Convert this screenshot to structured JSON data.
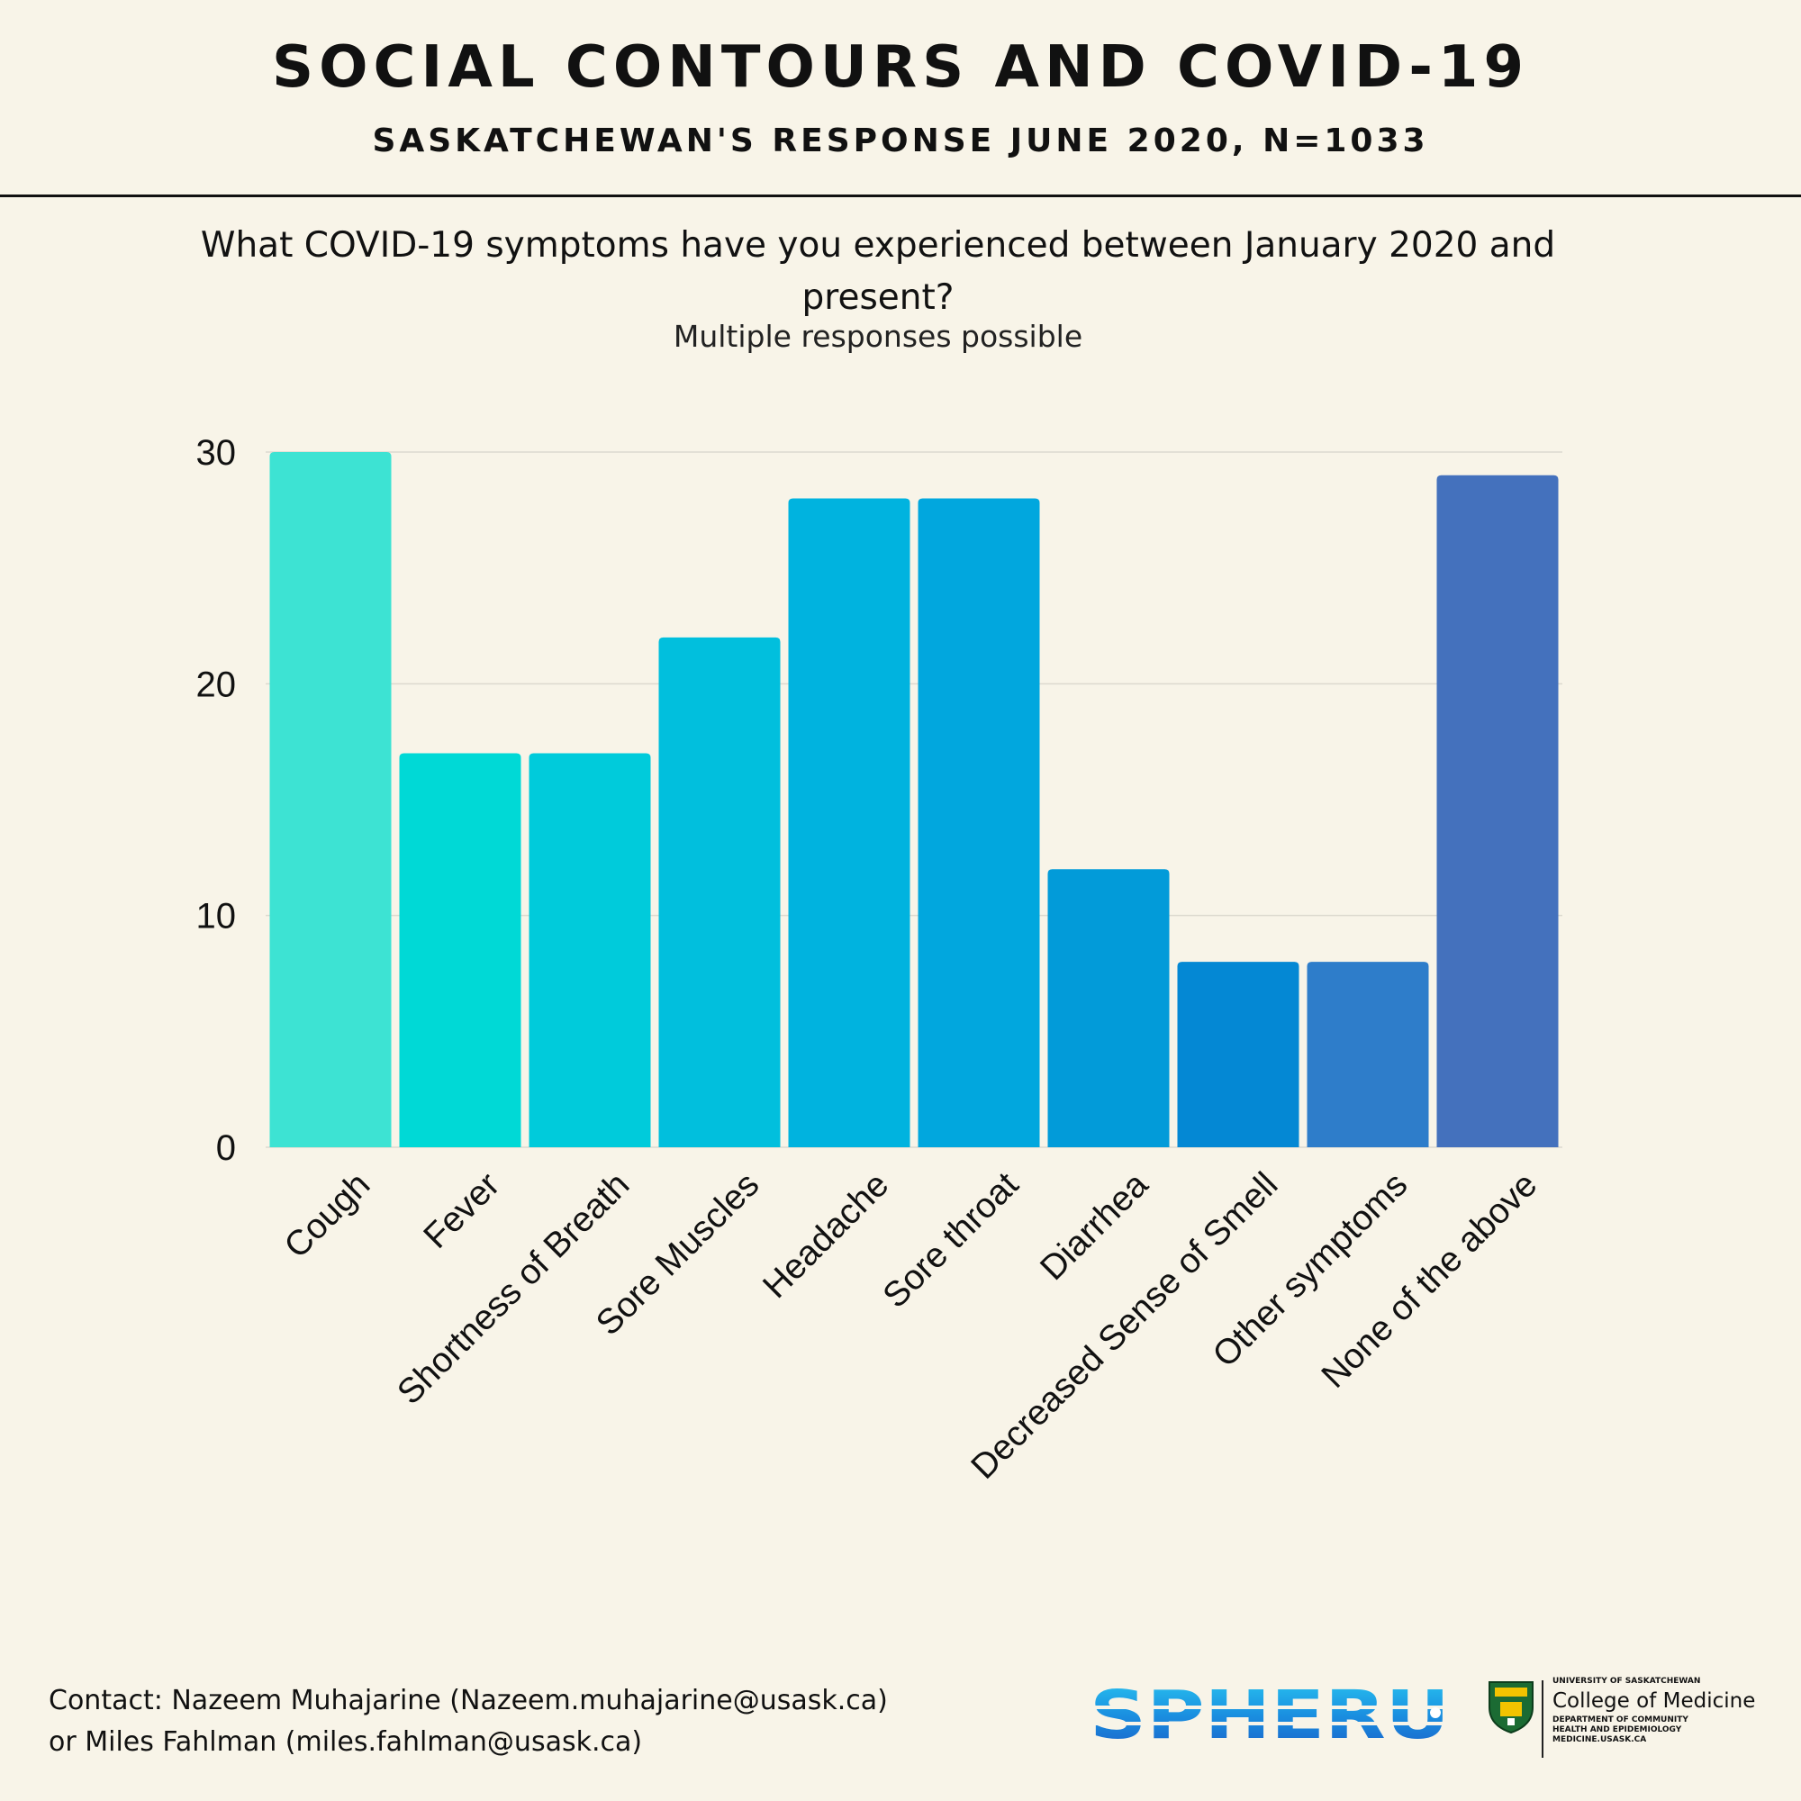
{
  "header": {
    "title": "SOCIAL CONTOURS AND COVID-19",
    "subtitle": "SASKATCHEWAN'S RESPONSE JUNE 2020, N=1033"
  },
  "question": {
    "line1": "What COVID-19 symptoms have you experienced between January 2020 and",
    "line2": "present?",
    "note": "Multiple responses possible"
  },
  "chart_data": {
    "type": "bar",
    "title": "What COVID-19 symptoms have you experienced between January 2020 and present?",
    "xlabel": "",
    "ylabel": "",
    "ylim": [
      0,
      30
    ],
    "yticks": [
      0,
      10,
      20,
      30
    ],
    "grid": true,
    "categories": [
      "Cough",
      "Fever",
      "Shortness of Breath",
      "Sore Muscles",
      "Headache",
      "Sore throat",
      "Diarrhea",
      "Decreased Sense of Smell",
      "Other symptoms",
      "None of the above"
    ],
    "values": [
      30,
      17,
      17,
      22,
      28,
      28,
      12,
      8,
      8,
      29
    ],
    "colors": [
      "#3de3d3",
      "#00d9d6",
      "#00cbdb",
      "#01bfdd",
      "#00b3df",
      "#01a7de",
      "#029bd9",
      "#0488d4",
      "#2e7dca",
      "#4471bd"
    ]
  },
  "footer": {
    "contact_line1": "Contact: Nazeem Muhajarine (Nazeem.muhajarine@usask.ca)",
    "contact_line2": "or Miles Fahlman (miles.fahlman@usask.ca)"
  },
  "logos": {
    "spheru": "SPHERU",
    "usask_line1": "UNIVERSITY OF SASKATCHEWAN",
    "usask_line2": "College of Medicine",
    "usask_line3": "DEPARTMENT OF COMMUNITY",
    "usask_line4": "HEALTH AND EPIDEMIOLOGY",
    "usask_line5": "MEDICINE.USASK.CA"
  }
}
